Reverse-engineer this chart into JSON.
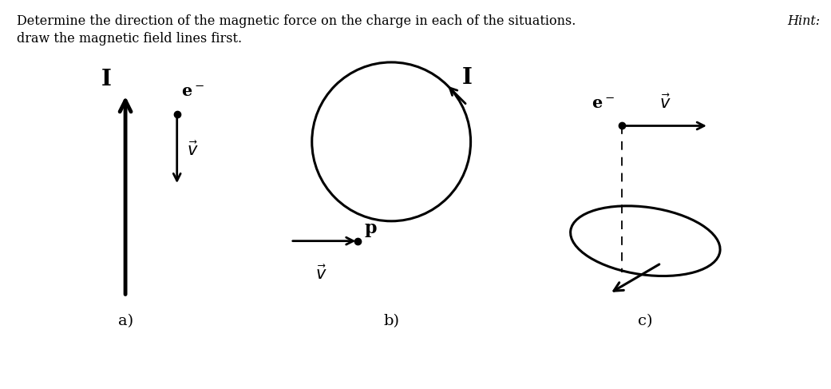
{
  "title_line1": "Determine the direction of the magnetic force on the charge in each of the situations.",
  "title_hint": "Hint:",
  "title_line2": "draw the magnetic field lines first.",
  "bg_color": "#ffffff",
  "fig_width": 10.41,
  "fig_height": 4.87,
  "label_a": "a)",
  "label_b": "b)",
  "label_c": "c)",
  "text_fontsize": 11.5,
  "label_fontsize": 14,
  "I_fontsize": 20,
  "e_fontsize": 15,
  "v_fontsize": 14,
  "p_fontsize": 16
}
